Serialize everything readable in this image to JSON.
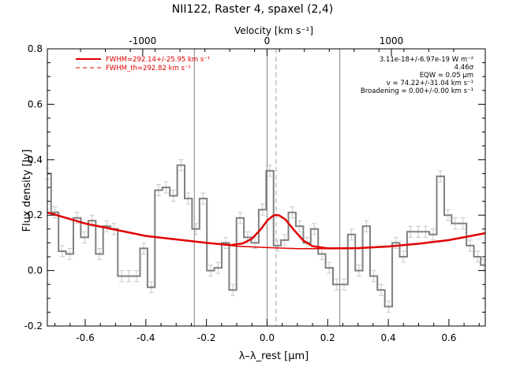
{
  "chart_data": {
    "type": "line",
    "title": "NII122, Raster 4, spaxel (2,4)",
    "xlabel": "λ–λ_rest [μm]",
    "ylabel": "Flux density [Jy]",
    "top_axis_label": "Velocity [km s⁻¹]",
    "xlim": [
      -0.725,
      0.72
    ],
    "ylim": [
      -0.2,
      0.8
    ],
    "x_ticks": [
      "-0.6",
      "-0.4",
      "-0.2",
      "0.0",
      "0.2",
      "0.4",
      "0.6"
    ],
    "x_tick_values": [
      -0.6,
      -0.4,
      -0.2,
      0.0,
      0.2,
      0.4,
      0.6
    ],
    "y_ticks": [
      "-0.2",
      "0.0",
      "0.2",
      "0.4",
      "0.6",
      "0.8"
    ],
    "y_tick_values": [
      -0.2,
      0.0,
      0.2,
      0.4,
      0.6,
      0.8
    ],
    "top_ticks": [
      "-1000",
      "0",
      "1000"
    ],
    "top_tick_values": [
      -1000,
      0,
      1000
    ],
    "velocity_per_micron": 2437,
    "vertical_lines_solid": [
      -0.24,
      0.0,
      0.24
    ],
    "vertical_line_dashed": 0.03,
    "legend": [
      {
        "label": "FWHM=292.14+/-25.95 km s⁻¹",
        "style": "solid",
        "color": "#e00000"
      },
      {
        "label": "FWHM_th=292.82 km s⁻¹",
        "style": "dashed",
        "color": "#e00000"
      }
    ],
    "annotations": [
      "3.11e-18+/-6.97e-19 W m⁻²",
      "4.46σ",
      "EQW = 0.05 μm",
      "v = 74.22+/-31.04 km s⁻¹",
      "Broadening = 0.00+/-0.00 km s⁻¹"
    ],
    "series": [
      {
        "name": "spectrum",
        "style": "histogram",
        "color": "#808080",
        "bin_width": 0.0245,
        "x": [
          -0.725,
          -0.7,
          -0.676,
          -0.651,
          -0.627,
          -0.602,
          -0.578,
          -0.553,
          -0.529,
          -0.505,
          -0.48,
          -0.456,
          -0.431,
          -0.407,
          -0.382,
          -0.358,
          -0.333,
          -0.309,
          -0.284,
          -0.26,
          -0.235,
          -0.211,
          -0.186,
          -0.162,
          -0.137,
          -0.113,
          -0.089,
          -0.064,
          -0.04,
          -0.015,
          0.009,
          0.034,
          0.058,
          0.083,
          0.107,
          0.132,
          0.156,
          0.181,
          0.205,
          0.23,
          0.254,
          0.279,
          0.303,
          0.328,
          0.352,
          0.376,
          0.401,
          0.425,
          0.45,
          0.474,
          0.499,
          0.523,
          0.548,
          0.572,
          0.597,
          0.621,
          0.646,
          0.67,
          0.695,
          0.715
        ],
        "y": [
          0.35,
          0.21,
          0.07,
          0.06,
          0.19,
          0.12,
          0.18,
          0.06,
          0.16,
          0.15,
          -0.02,
          -0.02,
          -0.02,
          0.08,
          -0.06,
          0.29,
          0.3,
          0.27,
          0.38,
          0.26,
          0.15,
          0.26,
          0.0,
          0.01,
          0.1,
          -0.07,
          0.19,
          0.12,
          0.1,
          0.22,
          0.36,
          0.09,
          0.11,
          0.21,
          0.16,
          0.1,
          0.15,
          0.06,
          0.01,
          -0.05,
          -0.05,
          0.13,
          0.0,
          0.16,
          -0.02,
          -0.07,
          -0.13,
          0.1,
          0.05,
          0.14,
          0.14,
          0.14,
          0.13,
          0.34,
          0.2,
          0.17,
          0.17,
          0.09,
          0.05,
          0.02
        ],
        "error": 0.02
      },
      {
        "name": "baseline fit",
        "style": "line",
        "color": "#e00000",
        "x": [
          -0.725,
          -0.6,
          -0.4,
          -0.2,
          -0.1,
          0.0,
          0.1,
          0.2,
          0.3,
          0.4,
          0.5,
          0.6,
          0.72
        ],
        "y": [
          0.21,
          0.17,
          0.125,
          0.1,
          0.088,
          0.083,
          0.079,
          0.079,
          0.081,
          0.087,
          0.097,
          0.11,
          0.135
        ]
      },
      {
        "name": "line fit",
        "style": "line",
        "color": "#e00000",
        "x": [
          -0.725,
          -0.6,
          -0.4,
          -0.2,
          -0.12,
          -0.08,
          -0.05,
          -0.02,
          0.0,
          0.02,
          0.03,
          0.04,
          0.06,
          0.09,
          0.12,
          0.15,
          0.2,
          0.3,
          0.4,
          0.5,
          0.6,
          0.72
        ],
        "y": [
          0.21,
          0.17,
          0.125,
          0.1,
          0.092,
          0.098,
          0.115,
          0.15,
          0.18,
          0.198,
          0.201,
          0.199,
          0.185,
          0.145,
          0.108,
          0.088,
          0.08,
          0.081,
          0.087,
          0.097,
          0.11,
          0.135
        ]
      }
    ]
  }
}
